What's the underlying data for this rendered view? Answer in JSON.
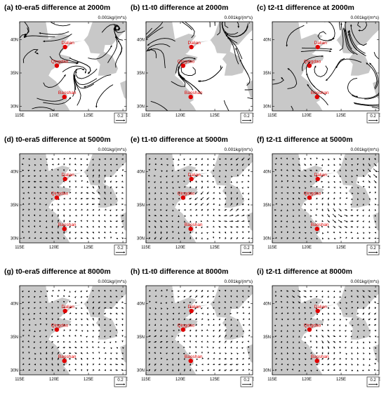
{
  "chart_data": {
    "type": "vector-field",
    "layout": "3x3 panel grid",
    "unit_label": "0.001kg/(m*s)",
    "reference_vector_label": "0.2",
    "x_ticks": [
      "115E",
      "120E",
      "125E",
      "130E"
    ],
    "y_ticks": [
      "30N",
      "35N",
      "40N"
    ],
    "xlim": [
      115,
      130.5
    ],
    "ylim": [
      29.3,
      42.7
    ],
    "cities": [
      {
        "name": "Dalian",
        "lon": 121.6,
        "lat": 38.9
      },
      {
        "name": "Qingdao",
        "lon": 120.4,
        "lat": 36.1
      },
      {
        "name": "Baoshan",
        "lon": 121.5,
        "lat": 31.4
      }
    ],
    "colors": {
      "land": "#c8c8c8",
      "ocean": "#ffffff",
      "city_marker": "#e00000",
      "vector": "#000000"
    },
    "panels": [
      {
        "title": "(a) t0-era5 difference at 2000m",
        "level_m": 2000,
        "style": "streamline"
      },
      {
        "title": "(b) t1-t0 difference at 2000m",
        "level_m": 2000,
        "style": "streamline"
      },
      {
        "title": "(c) t2-t1 difference at 2000m",
        "level_m": 2000,
        "style": "streamline"
      },
      {
        "title": "(d) t0-era5 difference at 5000m",
        "level_m": 5000,
        "style": "arrows"
      },
      {
        "title": "(e) t1-t0 difference at 5000m",
        "level_m": 5000,
        "style": "arrows"
      },
      {
        "title": "(f) t2-t1 difference at 5000m",
        "level_m": 5000,
        "style": "arrows"
      },
      {
        "title": "(g) t0-era5 difference at 8000m",
        "level_m": 8000,
        "style": "arrows"
      },
      {
        "title": "(h) t1-t0 difference at 8000m",
        "level_m": 8000,
        "style": "arrows"
      },
      {
        "title": "(i) t2-t1 difference at 8000m",
        "level_m": 8000,
        "style": "arrows"
      }
    ]
  }
}
